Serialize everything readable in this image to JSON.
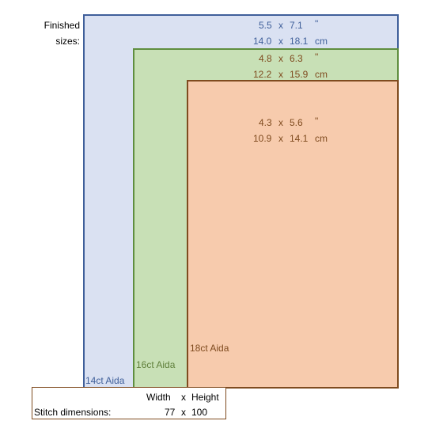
{
  "labels": {
    "finished_line1": "Finished",
    "finished_line2": "sizes:"
  },
  "sizes": {
    "aida14": {
      "label": "14ct Aida",
      "inch": {
        "w": "5.5",
        "x": "x",
        "h": "7.1",
        "unit": "\""
      },
      "cm": {
        "w": "14.0",
        "x": "x",
        "h": "18.1",
        "unit": "cm"
      }
    },
    "aida16": {
      "label": "16ct Aida",
      "inch": {
        "w": "4.8",
        "x": "x",
        "h": "6.3",
        "unit": "\""
      },
      "cm": {
        "w": "12.2",
        "x": "x",
        "h": "15.9",
        "unit": "cm"
      }
    },
    "aida18": {
      "label": "18ct Aida",
      "inch": {
        "w": "4.3",
        "x": "x",
        "h": "5.6",
        "unit": "\""
      },
      "cm": {
        "w": "10.9",
        "x": "x",
        "h": "14.1",
        "unit": "cm"
      }
    }
  },
  "stitch": {
    "width_header": "Width",
    "x": "x",
    "height_header": "Height",
    "label": "Stitch dimensions:",
    "width": "77",
    "height": "100"
  },
  "colors": {
    "aida14_fill": "#dae1f2",
    "aida14_border": "#3f5f9a",
    "aida16_fill": "#c8e0b6",
    "aida16_border": "#5f8e3f",
    "aida18_fill": "#f7cbad",
    "aida18_border": "#7f4b1f"
  }
}
